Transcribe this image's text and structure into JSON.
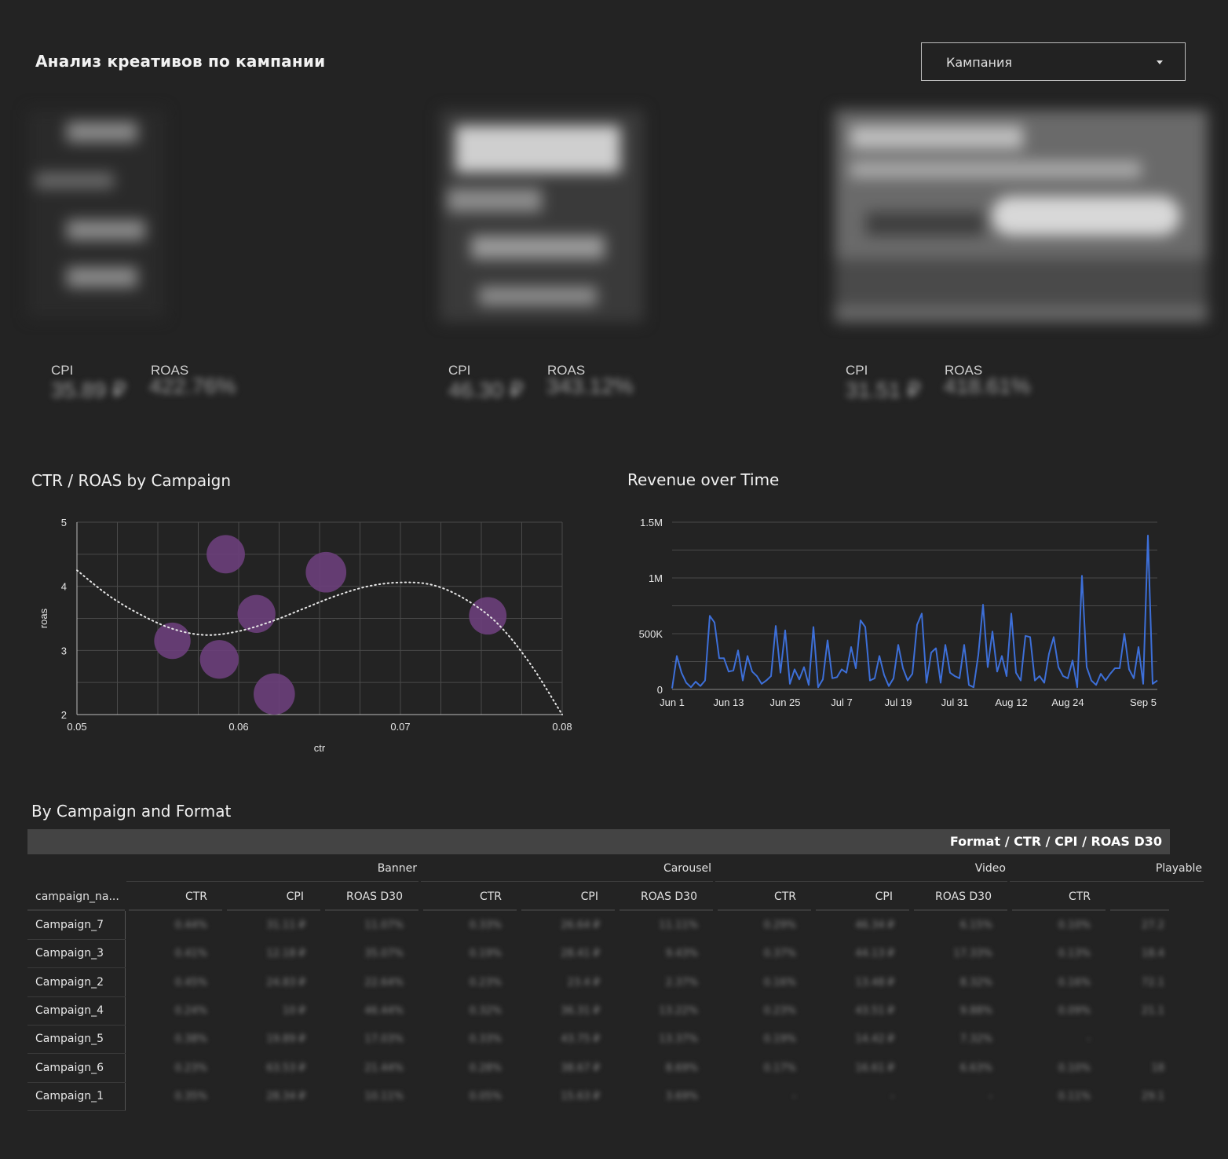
{
  "header": {
    "title": "Анализ креативов по кампании",
    "campaign_filter": "Кампания"
  },
  "cards": [
    {
      "cpi_label": "CPI",
      "roas_label": "ROAS",
      "cpi_value": "35.89 ₽",
      "roas_value": "422.76%"
    },
    {
      "cpi_label": "CPI",
      "roas_label": "ROAS",
      "cpi_value": "46.30 ₽",
      "roas_value": "343.12%"
    },
    {
      "cpi_label": "CPI",
      "roas_label": "ROAS",
      "cpi_value": "31.51 ₽",
      "roas_value": "418.61%"
    }
  ],
  "scatter": {
    "title": "CTR / ROAS by Campaign",
    "x_ticks": [
      "0.05",
      "0.06",
      "0.07",
      "0.08"
    ],
    "y_ticks": [
      "2",
      "3",
      "4",
      "5"
    ]
  },
  "line": {
    "title": "Revenue over Time",
    "y_ticks": [
      "0",
      "500K",
      "1M",
      "1.5M"
    ],
    "x_ticks": [
      "Jun 1",
      "Jun 13",
      "Jun 25",
      "Jul 7",
      "Jul 19",
      "Jul 31",
      "Aug 12",
      "Aug 24",
      "Sep 5"
    ]
  },
  "table": {
    "title": "By Campaign and Format",
    "header": "Format / CTR / CPI / ROAS D30",
    "row_header": "campaign_na...",
    "groups": [
      "Banner",
      "Carousel",
      "Video",
      "Playable"
    ],
    "metrics": [
      "CTR",
      "CPI",
      "ROAS D30"
    ],
    "rows": [
      {
        "name": "Campaign_7",
        "cells": [
          "0.44%",
          "31.11 ₽",
          "11.07%",
          "0.33%",
          "26.64 ₽",
          "11.11%",
          "0.29%",
          "46.34 ₽",
          "6.15%",
          "0.10%",
          "27.2"
        ]
      },
      {
        "name": "Campaign_3",
        "cells": [
          "0.41%",
          "12.18 ₽",
          "35.07%",
          "0.19%",
          "28.41 ₽",
          "9.43%",
          "0.37%",
          "44.13 ₽",
          "17.33%",
          "0.13%",
          "18.4"
        ]
      },
      {
        "name": "Campaign_2",
        "cells": [
          "0.45%",
          "24.83 ₽",
          "22.64%",
          "0.23%",
          "23.4 ₽",
          "2.37%",
          "0.16%",
          "13.48 ₽",
          "8.32%",
          "0.16%",
          "72.1"
        ]
      },
      {
        "name": "Campaign_4",
        "cells": [
          "0.24%",
          "10 ₽",
          "46.44%",
          "0.32%",
          "36.31 ₽",
          "13.22%",
          "0.23%",
          "43.51 ₽",
          "9.88%",
          "0.09%",
          "21.1"
        ]
      },
      {
        "name": "Campaign_5",
        "cells": [
          "0.38%",
          "19.89 ₽",
          "17.03%",
          "0.33%",
          "43.75 ₽",
          "13.37%",
          "0.19%",
          "14.42 ₽",
          "7.32%",
          "-",
          ""
        ]
      },
      {
        "name": "Campaign_6",
        "cells": [
          "0.23%",
          "63.53 ₽",
          "21.44%",
          "0.28%",
          "38.67 ₽",
          "8.69%",
          "0.17%",
          "16.61 ₽",
          "6.63%",
          "0.10%",
          "18"
        ]
      },
      {
        "name": "Campaign_1",
        "cells": [
          "0.35%",
          "28.34 ₽",
          "10.11%",
          "0.05%",
          "15.63 ₽",
          "3.69%",
          "-",
          "-",
          "-",
          "0.11%",
          "29.1"
        ]
      }
    ]
  },
  "chart_data": [
    {
      "type": "scatter",
      "title": "CTR / ROAS by Campaign",
      "xlabel": "ctr",
      "ylabel": "roas",
      "xlim": [
        0.05,
        0.08
      ],
      "ylim": [
        2,
        5
      ],
      "grid": true,
      "color": "#6a3f7a",
      "points": [
        {
          "x": 0.0559,
          "y": 3.15,
          "size": 0.6
        },
        {
          "x": 0.0592,
          "y": 4.5,
          "size": 0.7
        },
        {
          "x": 0.0588,
          "y": 2.86,
          "size": 0.72
        },
        {
          "x": 0.0611,
          "y": 3.57,
          "size": 0.68
        },
        {
          "x": 0.0654,
          "y": 4.22,
          "size": 0.82
        },
        {
          "x": 0.0622,
          "y": 2.32,
          "size": 0.86
        },
        {
          "x": 0.0754,
          "y": 3.54,
          "size": 0.66
        }
      ],
      "trend": [
        [
          0.05,
          4.25
        ],
        [
          0.052,
          3.85
        ],
        [
          0.054,
          3.55
        ],
        [
          0.056,
          3.33
        ],
        [
          0.058,
          3.24
        ],
        [
          0.06,
          3.3
        ],
        [
          0.062,
          3.45
        ],
        [
          0.064,
          3.65
        ],
        [
          0.066,
          3.85
        ],
        [
          0.068,
          4.0
        ],
        [
          0.07,
          4.06
        ],
        [
          0.072,
          4.02
        ],
        [
          0.074,
          3.8
        ],
        [
          0.076,
          3.42
        ],
        [
          0.078,
          2.8
        ],
        [
          0.08,
          2.0
        ]
      ]
    },
    {
      "type": "line",
      "title": "Revenue over Time",
      "ylim": [
        0,
        1500000
      ],
      "color": "#3d6fd8",
      "grid": true,
      "x_start": "Jun 1",
      "values": [
        10000,
        300000,
        150000,
        60000,
        20000,
        70000,
        30000,
        80000,
        660000,
        600000,
        280000,
        280000,
        160000,
        170000,
        350000,
        80000,
        300000,
        160000,
        120000,
        50000,
        80000,
        120000,
        570000,
        150000,
        530000,
        50000,
        180000,
        90000,
        200000,
        40000,
        560000,
        20000,
        90000,
        440000,
        100000,
        110000,
        180000,
        150000,
        380000,
        190000,
        620000,
        560000,
        80000,
        100000,
        300000,
        130000,
        30000,
        100000,
        400000,
        190000,
        80000,
        140000,
        580000,
        680000,
        60000,
        330000,
        370000,
        60000,
        400000,
        150000,
        120000,
        100000,
        400000,
        40000,
        20000,
        310000,
        760000,
        200000,
        520000,
        160000,
        300000,
        120000,
        680000,
        150000,
        80000,
        480000,
        470000,
        80000,
        120000,
        60000,
        320000,
        470000,
        200000,
        120000,
        100000,
        260000,
        20000,
        1020000,
        200000,
        80000,
        40000,
        140000,
        80000,
        140000,
        190000,
        190000,
        500000,
        180000,
        100000,
        380000,
        50000,
        1380000,
        50000,
        80000
      ]
    }
  ]
}
